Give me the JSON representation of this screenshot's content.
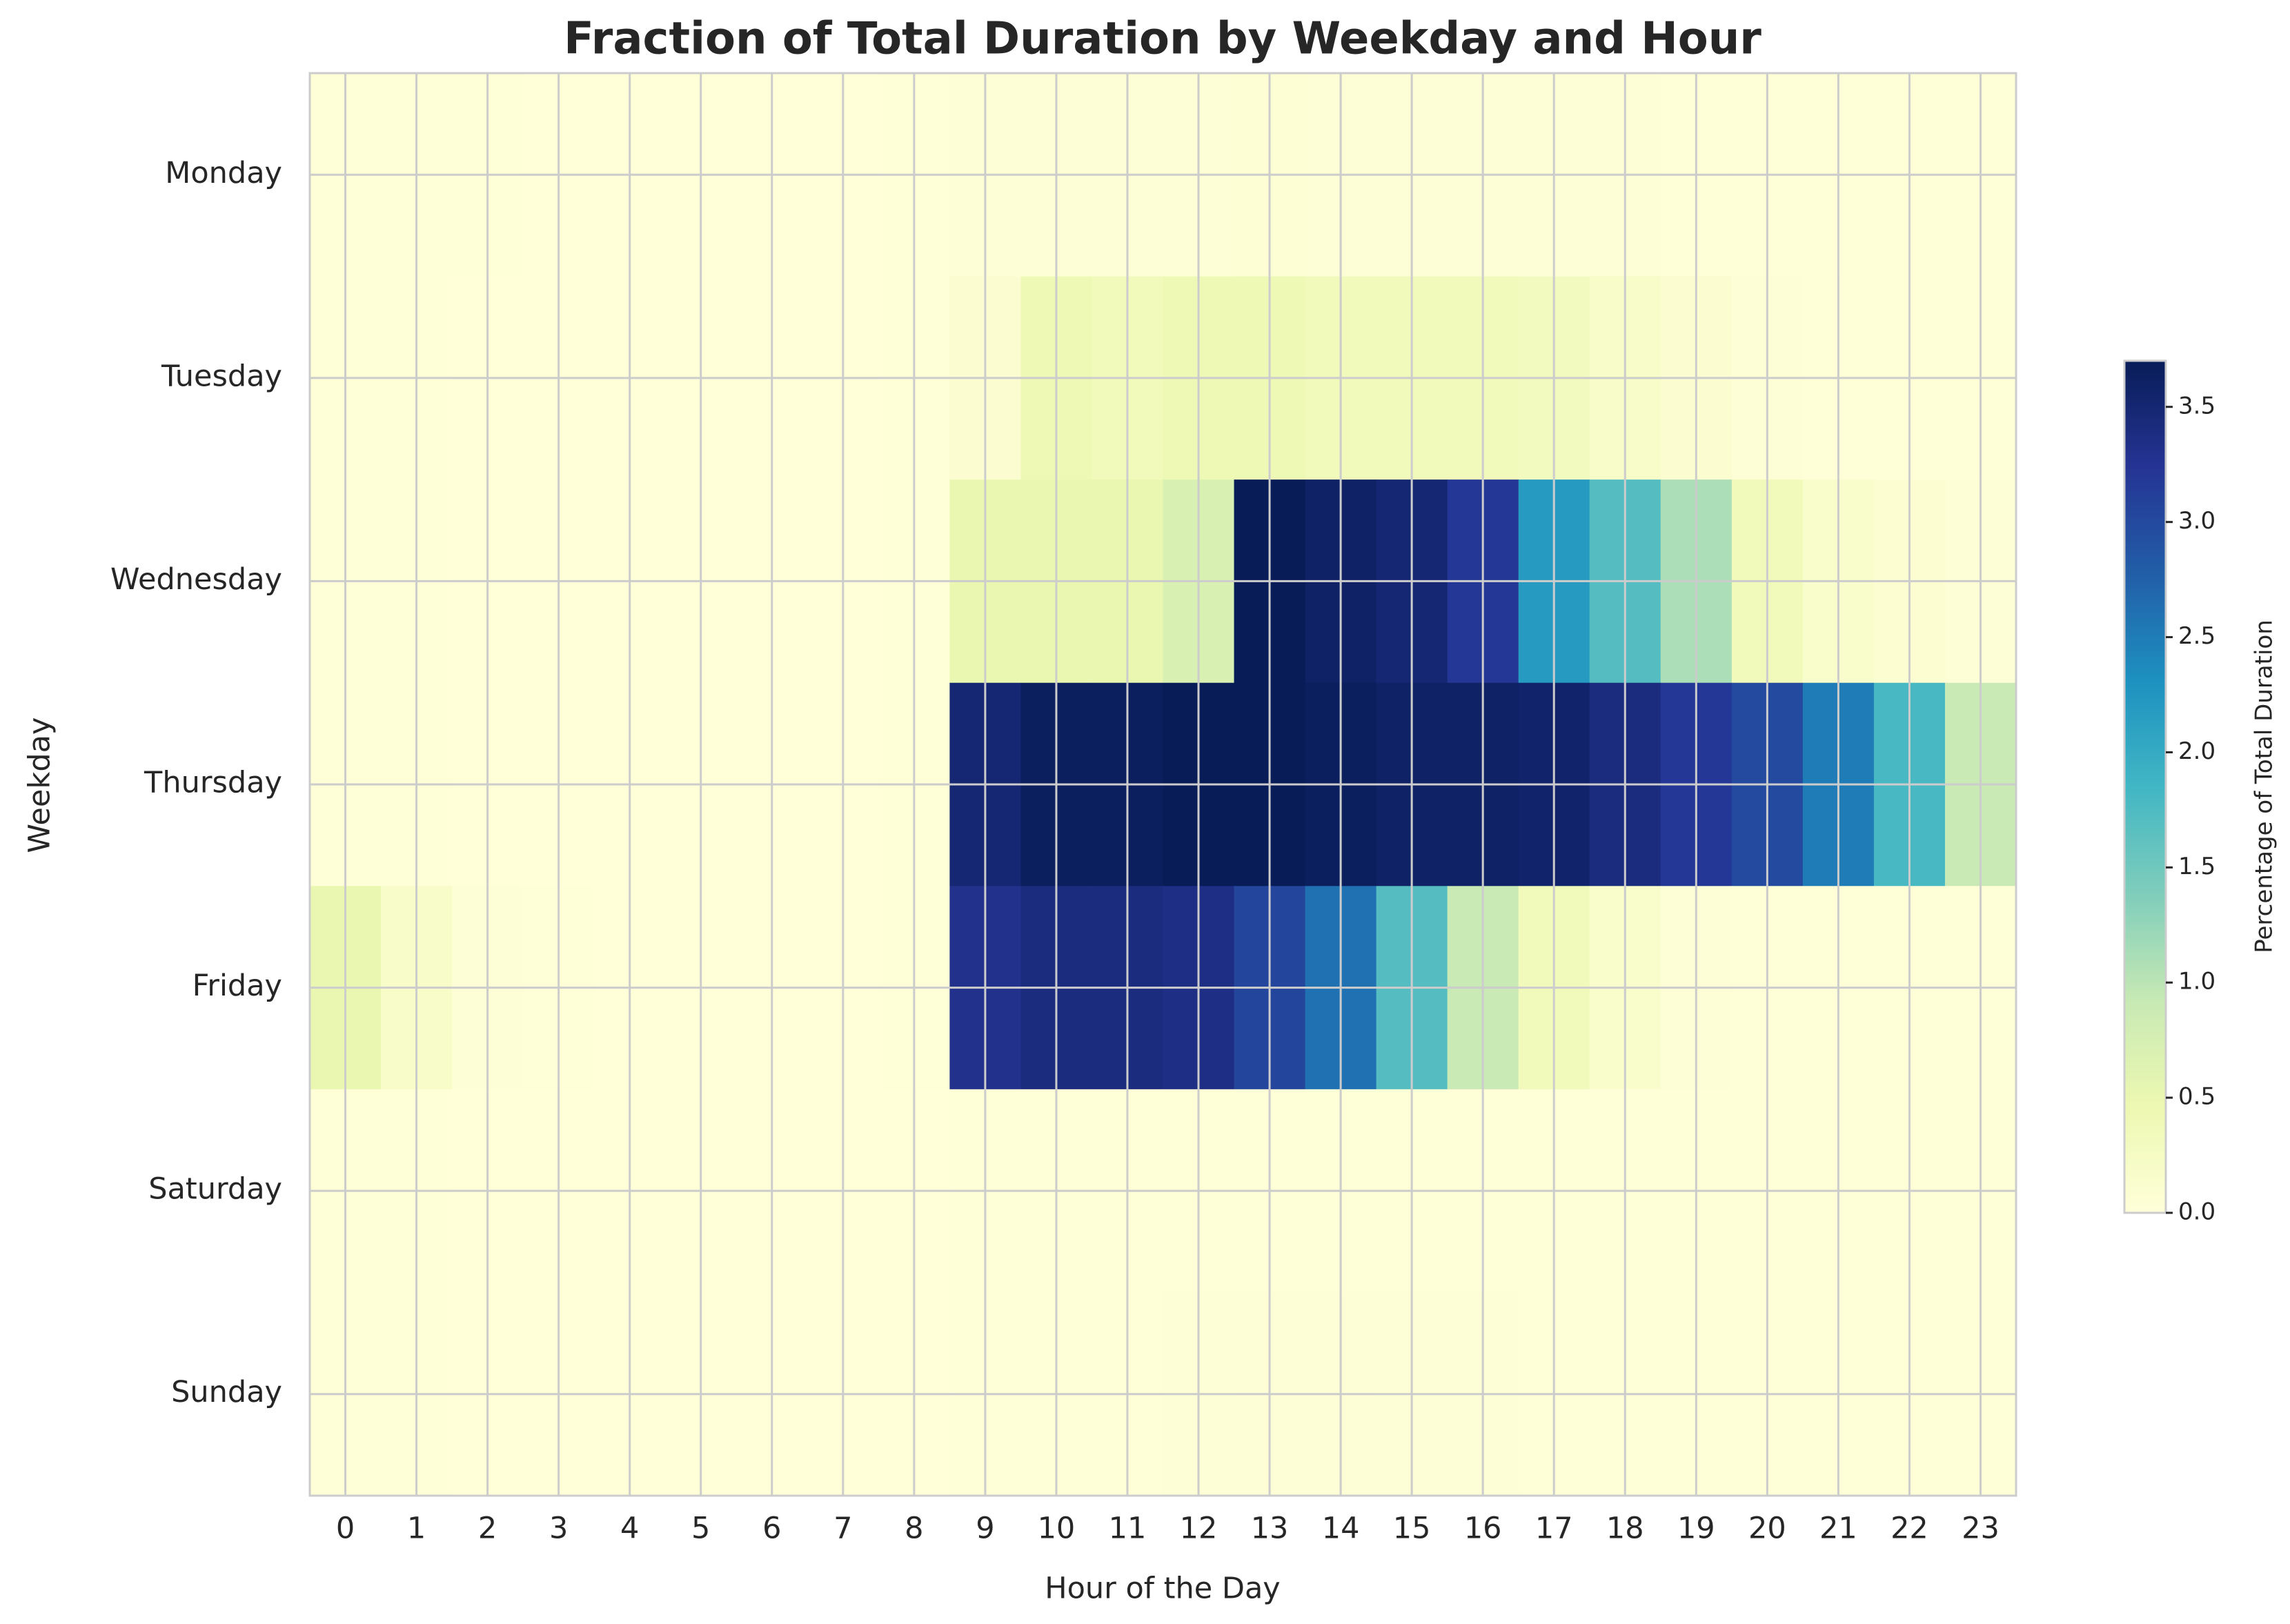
{
  "chart_data": {
    "type": "heatmap",
    "title": "Fraction of Total Duration by Weekday and Hour",
    "x_label": "Hour of the Day",
    "y_label": "Weekday",
    "colorbar_label": "Percentage of Total Duration",
    "x_categories": [
      "0",
      "1",
      "2",
      "3",
      "4",
      "5",
      "6",
      "7",
      "8",
      "9",
      "10",
      "11",
      "12",
      "13",
      "14",
      "15",
      "16",
      "17",
      "18",
      "19",
      "20",
      "21",
      "22",
      "23"
    ],
    "y_categories": [
      "Monday",
      "Tuesday",
      "Wednesday",
      "Thursday",
      "Friday",
      "Saturday",
      "Sunday"
    ],
    "values": [
      [
        0.02,
        0.02,
        0.02,
        0.01,
        0.01,
        0.01,
        0.01,
        0.01,
        0.02,
        0.04,
        0.05,
        0.05,
        0.05,
        0.06,
        0.05,
        0.05,
        0.05,
        0.04,
        0.04,
        0.03,
        0.03,
        0.02,
        0.02,
        0.02
      ],
      [
        0.02,
        0.02,
        0.01,
        0.01,
        0.01,
        0.01,
        0.01,
        0.01,
        0.02,
        0.1,
        0.4,
        0.35,
        0.4,
        0.4,
        0.35,
        0.35,
        0.35,
        0.3,
        0.2,
        0.1,
        0.05,
        0.03,
        0.02,
        0.02
      ],
      [
        0.02,
        0.02,
        0.01,
        0.01,
        0.01,
        0.01,
        0.01,
        0.01,
        0.02,
        0.5,
        0.5,
        0.5,
        0.7,
        3.7,
        3.6,
        3.5,
        3.2,
        2.2,
        1.7,
        1.1,
        0.35,
        0.15,
        0.08,
        0.05
      ],
      [
        0.02,
        0.02,
        0.01,
        0.01,
        0.01,
        0.01,
        0.01,
        0.01,
        0.02,
        3.5,
        3.65,
        3.65,
        3.7,
        3.7,
        3.65,
        3.6,
        3.6,
        3.55,
        3.4,
        3.2,
        3.0,
        2.5,
        1.8,
        0.9
      ],
      [
        0.5,
        0.2,
        0.05,
        0.02,
        0.01,
        0.01,
        0.01,
        0.01,
        0.02,
        3.3,
        3.4,
        3.4,
        3.35,
        3.05,
        2.6,
        1.7,
        0.9,
        0.35,
        0.15,
        0.05,
        0.02,
        0.02,
        0.02,
        0.02
      ],
      [
        0.02,
        0.02,
        0.01,
        0.01,
        0.01,
        0.01,
        0.01,
        0.01,
        0.01,
        0.02,
        0.02,
        0.02,
        0.02,
        0.02,
        0.02,
        0.02,
        0.02,
        0.02,
        0.02,
        0.02,
        0.02,
        0.02,
        0.02,
        0.02
      ],
      [
        0.02,
        0.03,
        0.01,
        0.01,
        0.01,
        0.01,
        0.01,
        0.01,
        0.01,
        0.02,
        0.03,
        0.03,
        0.04,
        0.05,
        0.05,
        0.04,
        0.04,
        0.03,
        0.03,
        0.02,
        0.02,
        0.02,
        0.02,
        0.02
      ]
    ],
    "clim": [
      0,
      3.7
    ],
    "colormap": [
      "#ffffd9",
      "#edf8b1",
      "#c7e9b4",
      "#7fcdbb",
      "#41b6c4",
      "#1d91c0",
      "#225ea8",
      "#253494",
      "#081d58"
    ],
    "cticks": [
      {
        "value": 0,
        "label": "0.0"
      },
      {
        "value": 0.5,
        "label": "0.5"
      },
      {
        "value": 1,
        "label": "1.0"
      },
      {
        "value": 1.5,
        "label": "1.5"
      },
      {
        "value": 2,
        "label": "2.0"
      },
      {
        "value": 2.5,
        "label": "2.5"
      },
      {
        "value": 3,
        "label": "3.0"
      },
      {
        "value": 3.5,
        "label": "3.5"
      }
    ],
    "grid": true
  }
}
